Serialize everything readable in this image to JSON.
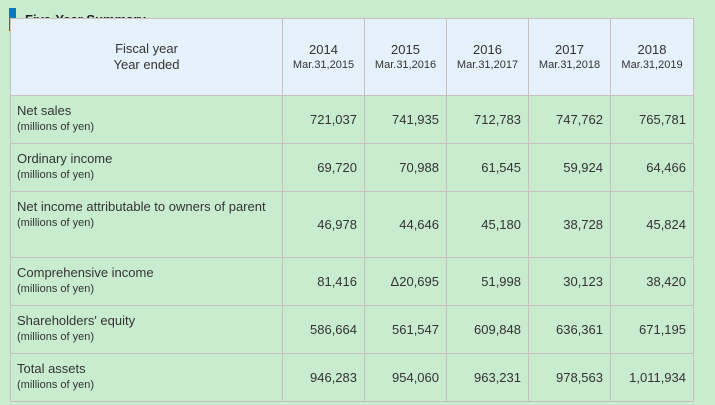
{
  "title": "Five-Year Summary",
  "colors": {
    "accent": "#0b79c1",
    "background": "#c9ecce",
    "header_bg": "#e5f2fb"
  },
  "header": {
    "label_line1": "Fiscal year",
    "label_line2": "Year ended",
    "columns": [
      {
        "year": "2014",
        "date": "Mar.31,2015"
      },
      {
        "year": "2015",
        "date": "Mar.31,2016"
      },
      {
        "year": "2016",
        "date": "Mar.31,2017"
      },
      {
        "year": "2017",
        "date": "Mar.31,2018"
      },
      {
        "year": "2018",
        "date": "Mar.31,2019"
      }
    ]
  },
  "rows": [
    {
      "label": "Net sales",
      "unit": "(millions of yen)",
      "values": [
        "721,037",
        "741,935",
        "712,783",
        "747,762",
        "765,781"
      ]
    },
    {
      "label": "Ordinary income",
      "unit": "(millions of yen)",
      "values": [
        "69,720",
        "70,988",
        "61,545",
        "59,924",
        "64,466"
      ]
    },
    {
      "label": "Net income attributable to owners of parent",
      "unit": "(millions of yen)",
      "values": [
        "46,978",
        "44,646",
        "45,180",
        "38,728",
        "45,824"
      ]
    },
    {
      "label": "Comprehensive income",
      "unit": "(millions of yen)",
      "values": [
        "81,416",
        "Δ20,695",
        "51,998",
        "30,123",
        "38,420"
      ]
    },
    {
      "label": "Shareholders' equity",
      "unit": "(millions of yen)",
      "values": [
        "586,664",
        "561,547",
        "609,848",
        "636,361",
        "671,195"
      ]
    },
    {
      "label": "Total assets",
      "unit": "(millions of yen)",
      "values": [
        "946,283",
        "954,060",
        "963,231",
        "978,563",
        "1,011,934"
      ]
    }
  ]
}
